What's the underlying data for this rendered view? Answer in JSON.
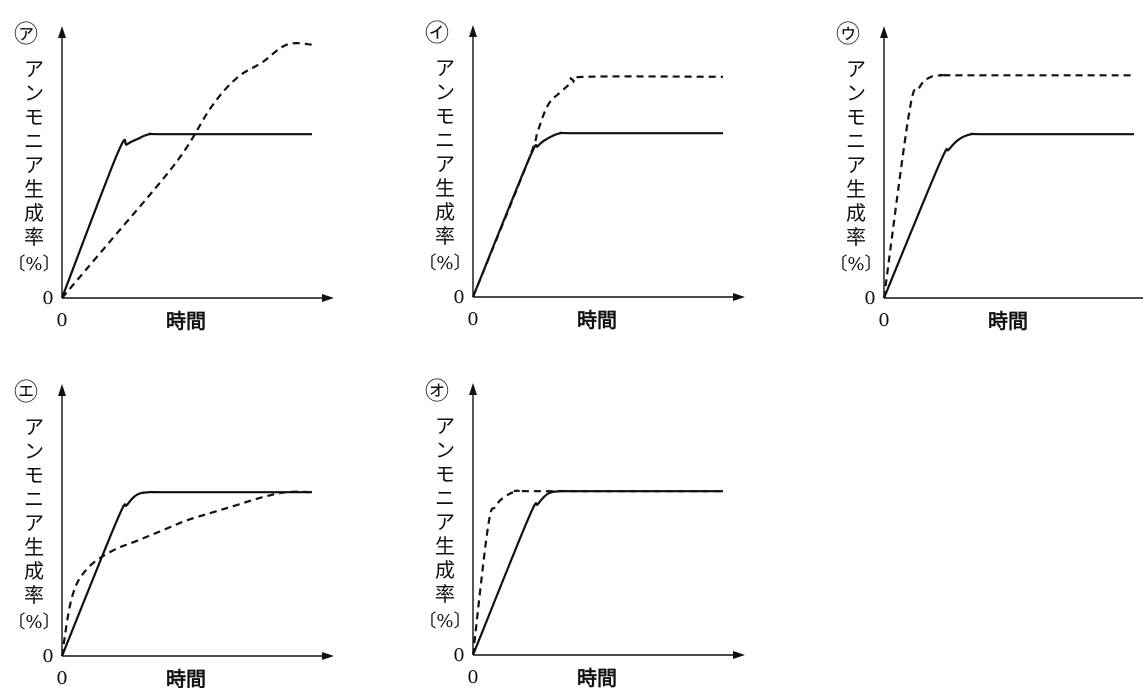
{
  "panel_labels": [
    "㋐",
    "㋑",
    "㋒",
    "㋓",
    "㋔"
  ],
  "xlabel": "時間",
  "ylabel_chars": [
    "ア",
    "ン",
    "モ",
    "ニ",
    "ア",
    "生",
    "成",
    "率"
  ],
  "ylabel_unit": "〔%〕",
  "origin_x_label": "0",
  "origin_y_label": "0",
  "chart_data": [
    {
      "type": "line",
      "panel": "㋐",
      "xlabel": "時間",
      "ylabel": "アンモニア生成率〔%〕",
      "xlim": [
        0,
        10
      ],
      "ylim": [
        0,
        100
      ],
      "series": [
        {
          "style": "solid",
          "x": [
            0,
            2.2,
            2.6,
            3,
            3.5,
            4.2,
            10
          ],
          "y": [
            0,
            56,
            60,
            62,
            64,
            64,
            64
          ]
        },
        {
          "style": "dashed",
          "x": [
            0,
            2,
            4,
            5,
            6,
            7,
            8,
            9,
            10
          ],
          "y": [
            0,
            23,
            46,
            59,
            75,
            86,
            92,
            99,
            99
          ]
        }
      ]
    },
    {
      "type": "line",
      "panel": "㋑",
      "xlabel": "時間",
      "ylabel": "アンモニア生成率〔%〕",
      "xlim": [
        0,
        10
      ],
      "ylim": [
        0,
        100
      ],
      "series": [
        {
          "style": "solid",
          "x": [
            0,
            2.2,
            2.6,
            3,
            3.5,
            4.2,
            10
          ],
          "y": [
            0,
            53,
            59,
            62,
            64,
            64,
            64
          ]
        },
        {
          "style": "dashed",
          "x": [
            0,
            2.2,
            2.6,
            3,
            3.5,
            4,
            4.5,
            10
          ],
          "y": [
            0,
            53,
            65,
            75,
            80,
            84,
            86,
            86
          ]
        }
      ]
    },
    {
      "type": "line",
      "panel": "㋒",
      "xlabel": "時間",
      "ylabel": "アンモニア生成率〔%〕",
      "xlim": [
        0,
        10
      ],
      "ylim": [
        0,
        100
      ],
      "series": [
        {
          "style": "solid",
          "x": [
            0,
            2.2,
            2.6,
            3,
            3.5,
            4.2,
            10
          ],
          "y": [
            0,
            52,
            58,
            62,
            64,
            64,
            64
          ]
        },
        {
          "style": "dashed",
          "x": [
            0,
            1,
            1.4,
            1.8,
            2.3,
            3,
            10
          ],
          "y": [
            0,
            72,
            82,
            86,
            87,
            87,
            87
          ]
        }
      ]
    },
    {
      "type": "line",
      "panel": "㋓",
      "xlabel": "時間",
      "ylabel": "アンモニア生成率〔%〕",
      "xlim": [
        0,
        10
      ],
      "ylim": [
        0,
        100
      ],
      "series": [
        {
          "style": "solid",
          "x": [
            0,
            2.2,
            2.6,
            3,
            3.5,
            4.2,
            10
          ],
          "y": [
            0,
            53,
            59,
            63,
            64,
            64,
            64
          ]
        },
        {
          "style": "dashed",
          "x": [
            0,
            0.4,
            1,
            2,
            3,
            4,
            5,
            6,
            7,
            8,
            9,
            10
          ],
          "y": [
            0,
            23,
            34,
            41,
            45,
            49,
            53,
            56,
            59,
            62,
            64,
            64
          ]
        }
      ]
    },
    {
      "type": "line",
      "panel": "㋔",
      "xlabel": "時間",
      "ylabel": "アンモニア生成率〔%〕",
      "xlim": [
        0,
        10
      ],
      "ylim": [
        0,
        100
      ],
      "series": [
        {
          "style": "solid",
          "x": [
            0,
            2.2,
            2.6,
            3,
            3.5,
            4.2,
            10
          ],
          "y": [
            0,
            53,
            59,
            63,
            64,
            64,
            64
          ]
        },
        {
          "style": "dashed",
          "x": [
            0,
            0.6,
            0.9,
            1.3,
            1.8,
            2.5,
            10
          ],
          "y": [
            0,
            50,
            58,
            62,
            64,
            64,
            64
          ]
        }
      ]
    }
  ]
}
